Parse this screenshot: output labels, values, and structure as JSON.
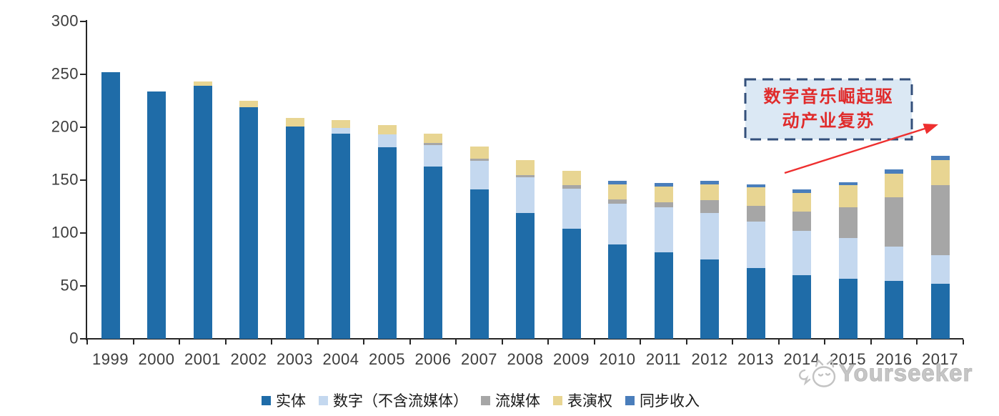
{
  "chart_data": {
    "type": "bar",
    "stacked": true,
    "title": "",
    "categories": [
      "1999",
      "2000",
      "2001",
      "2002",
      "2003",
      "2004",
      "2005",
      "2006",
      "2007",
      "2008",
      "2009",
      "2010",
      "2011",
      "2012",
      "2013",
      "2014",
      "2015",
      "2016",
      "2017"
    ],
    "series": [
      {
        "name": "实体",
        "color": "#1F6CA8",
        "values": [
          252,
          234,
          239,
          219,
          201,
          194,
          181,
          163,
          141,
          119,
          104,
          89,
          82,
          75,
          67,
          60,
          57,
          55,
          52
        ]
      },
      {
        "name": "数字（不含流媒体）",
        "color": "#C4D8EF",
        "values": [
          0,
          0,
          0,
          0,
          0,
          5,
          12,
          20,
          27,
          34,
          38,
          39,
          42,
          44,
          44,
          42,
          38,
          32,
          27
        ]
      },
      {
        "name": "流媒体",
        "color": "#A6A6A6",
        "values": [
          0,
          0,
          0,
          0,
          0,
          0,
          0,
          2,
          2,
          2,
          3,
          4,
          5,
          12,
          15,
          18,
          29,
          47,
          66
        ]
      },
      {
        "name": "表演权",
        "color": "#E8D592",
        "values": [
          0,
          0,
          4,
          6,
          8,
          8,
          9,
          9,
          12,
          14,
          14,
          14,
          15,
          15,
          17,
          18,
          21,
          22,
          24
        ]
      },
      {
        "name": "同步收入",
        "color": "#4A7EBB",
        "values": [
          0,
          0,
          0,
          0,
          0,
          0,
          0,
          0,
          0,
          0,
          0,
          3,
          3,
          3,
          3,
          3,
          3,
          4,
          4
        ]
      }
    ],
    "ylim": [
      0,
      300
    ],
    "yticks": [
      0,
      50,
      100,
      150,
      200,
      250,
      300
    ],
    "grid": false,
    "legend_position": "bottom",
    "axis_color": "#262626",
    "label_color": "#3c3c3c",
    "annotation": {
      "text": "数字音乐崛起驱动产业复苏",
      "line1": "数字音乐崛起驱",
      "line2": "动产业复苏",
      "box_fill": "#DBE8F4",
      "border_color": "#34507B",
      "text_color": "#E02B2B",
      "arrow_color": "#EE2F2F"
    }
  },
  "watermark": {
    "text": "Yourseeker",
    "color": "#C6C6C6",
    "logo": "cat-mascot-logo"
  }
}
